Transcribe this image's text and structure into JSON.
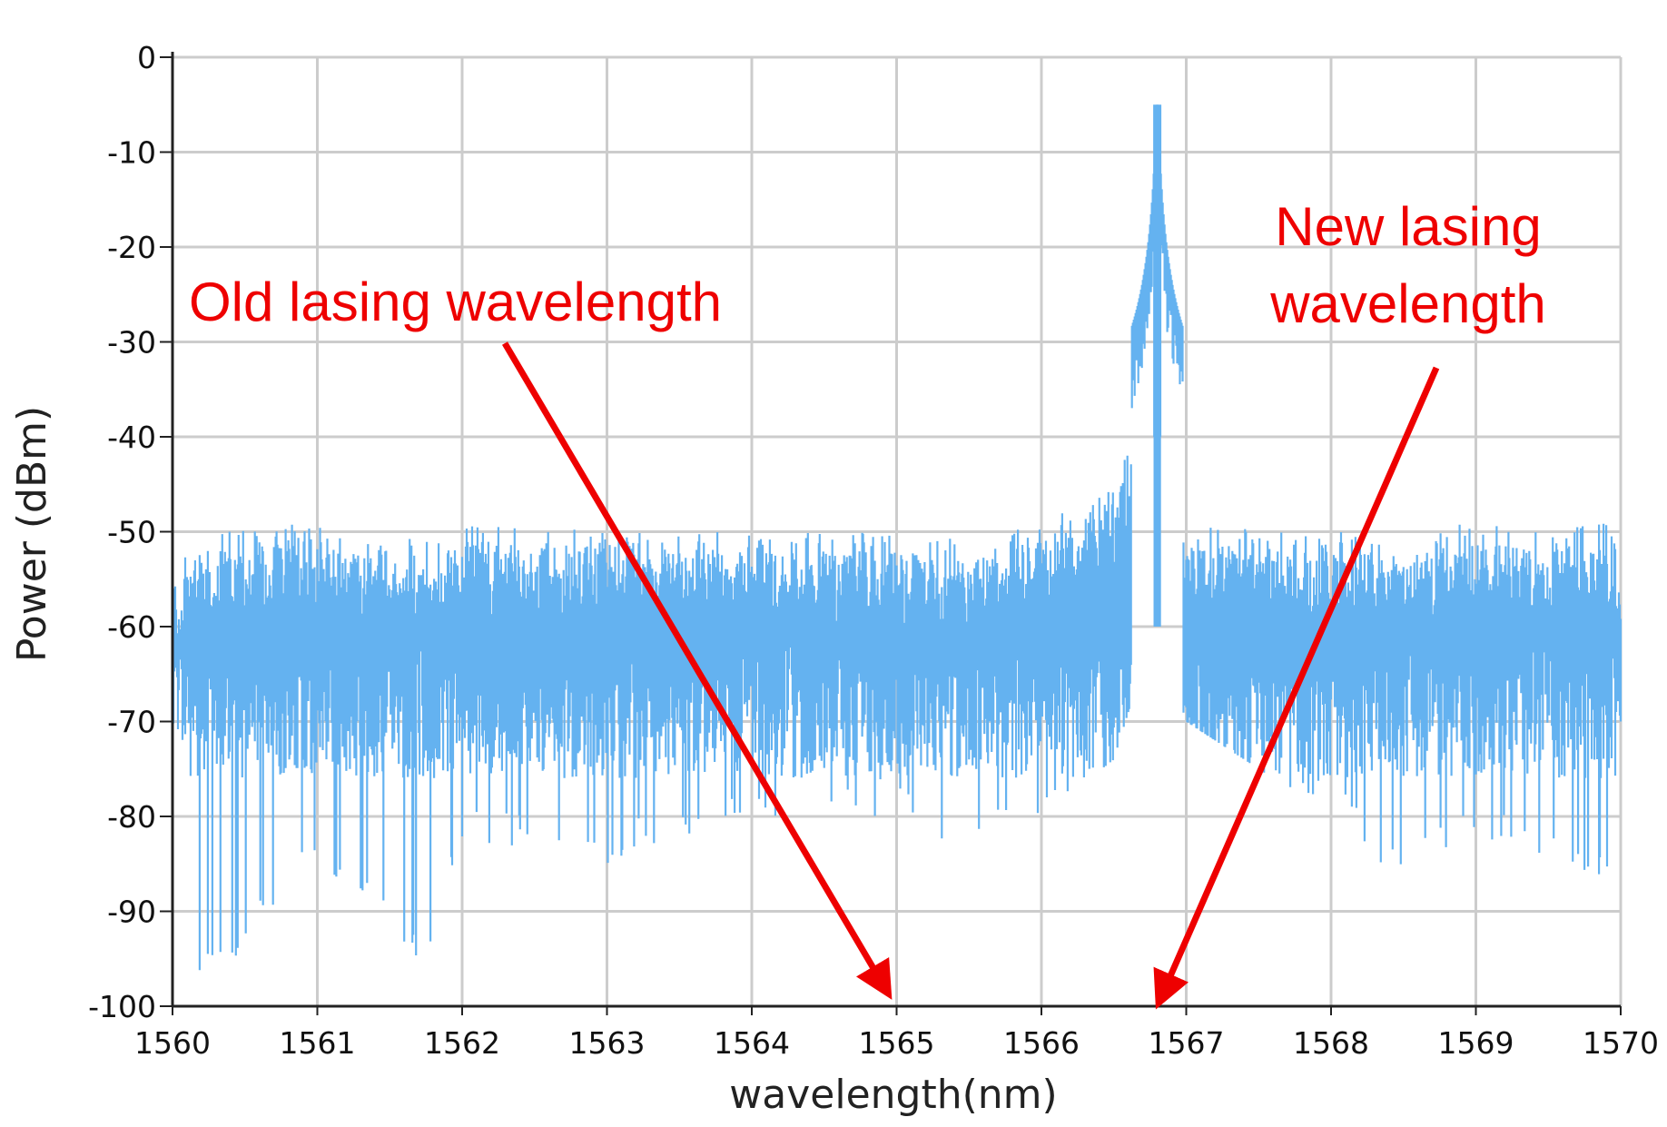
{
  "chart_data": {
    "type": "line",
    "xlabel": "wavelength(nm)",
    "ylabel": "Power (dBm)",
    "xlim": [
      1560,
      1570
    ],
    "ylim": [
      -100,
      0
    ],
    "x_ticks": [
      "1560",
      "1561",
      "1562",
      "1563",
      "1564",
      "1565",
      "1566",
      "1567",
      "1568",
      "1569",
      "1570"
    ],
    "y_ticks": [
      "0",
      "-10",
      "-20",
      "-30",
      "-40",
      "-50",
      "-60",
      "-70",
      "-80",
      "-90",
      "-100"
    ],
    "grid": true,
    "series": [
      {
        "color": "#64b2f0",
        "peak": {
          "x": 1566.8,
          "y": -5
        },
        "noise_floor_upper": -50,
        "noise_floor_lower": -70,
        "x": [
          1560.0,
          1560.2,
          1561.0,
          1561.8,
          1562.0,
          1563.0,
          1564.0,
          1565.0,
          1565.5,
          1566.0,
          1566.5,
          1566.7,
          1566.8,
          1566.9,
          1567.0,
          1568.0,
          1568.4,
          1569.0,
          1569.5,
          1569.9,
          1570.0
        ],
        "upper": [
          -54,
          -50,
          -49,
          -51,
          -49,
          -50,
          -50,
          -50,
          -51,
          -49,
          -45,
          -38,
          -5,
          -41,
          -49,
          -50,
          -50,
          -49,
          -50,
          -49,
          -52
        ],
        "lower": [
          -83,
          -99,
          -85,
          -97,
          -83,
          -85,
          -80,
          -80,
          -85,
          -80,
          -74,
          -64,
          -60,
          -65,
          -70,
          -80,
          -86,
          -83,
          -85,
          -87,
          -70
        ]
      }
    ],
    "annotations": [
      {
        "text": "Old lasing wavelength",
        "points_to_x": 1565.0
      },
      {
        "text": "New lasing wavelength",
        "points_to_x": 1566.8
      }
    ]
  },
  "annotation_style": {
    "color": "#ee0000"
  }
}
